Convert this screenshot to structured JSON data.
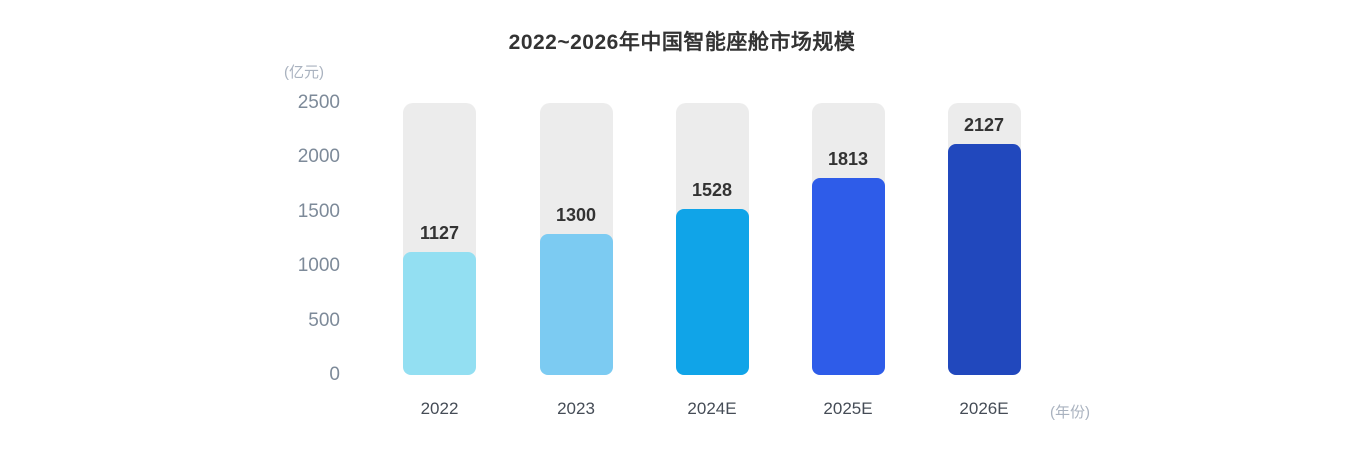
{
  "title": "2022~2026年中国智能座舱市场规模",
  "y_axis": {
    "unit_label": "(亿元)",
    "ticks": [
      "2500",
      "2000",
      "1500",
      "1000",
      "500",
      "0"
    ]
  },
  "x_axis": {
    "unit_label": "(年份)"
  },
  "chart_data": {
    "type": "bar",
    "title": "2022~2026年中国智能座舱市场规模",
    "categories": [
      "2022",
      "2023",
      "2024E",
      "2025E",
      "2026E"
    ],
    "values": [
      1127,
      1300,
      1528,
      1813,
      2127
    ],
    "xlabel": "(年份)",
    "ylabel": "(亿元)",
    "ylim": [
      0,
      2500
    ],
    "yticks": [
      2500,
      2000,
      1500,
      1000,
      500,
      0
    ],
    "grid": false,
    "legend": "none",
    "value_labels_shown": true,
    "colors": {
      "bar_colors": [
        "#93dff2",
        "#7ccbf2",
        "#10a4e8",
        "#2e5ce9",
        "#2148bd"
      ],
      "track_color": "#ececec",
      "value_label_color": "#333333",
      "tick_label_color": "#7d8a99",
      "category_label_color": "#454c56",
      "unit_label_color": "#a9b2bf",
      "title_color": "#333333"
    }
  }
}
